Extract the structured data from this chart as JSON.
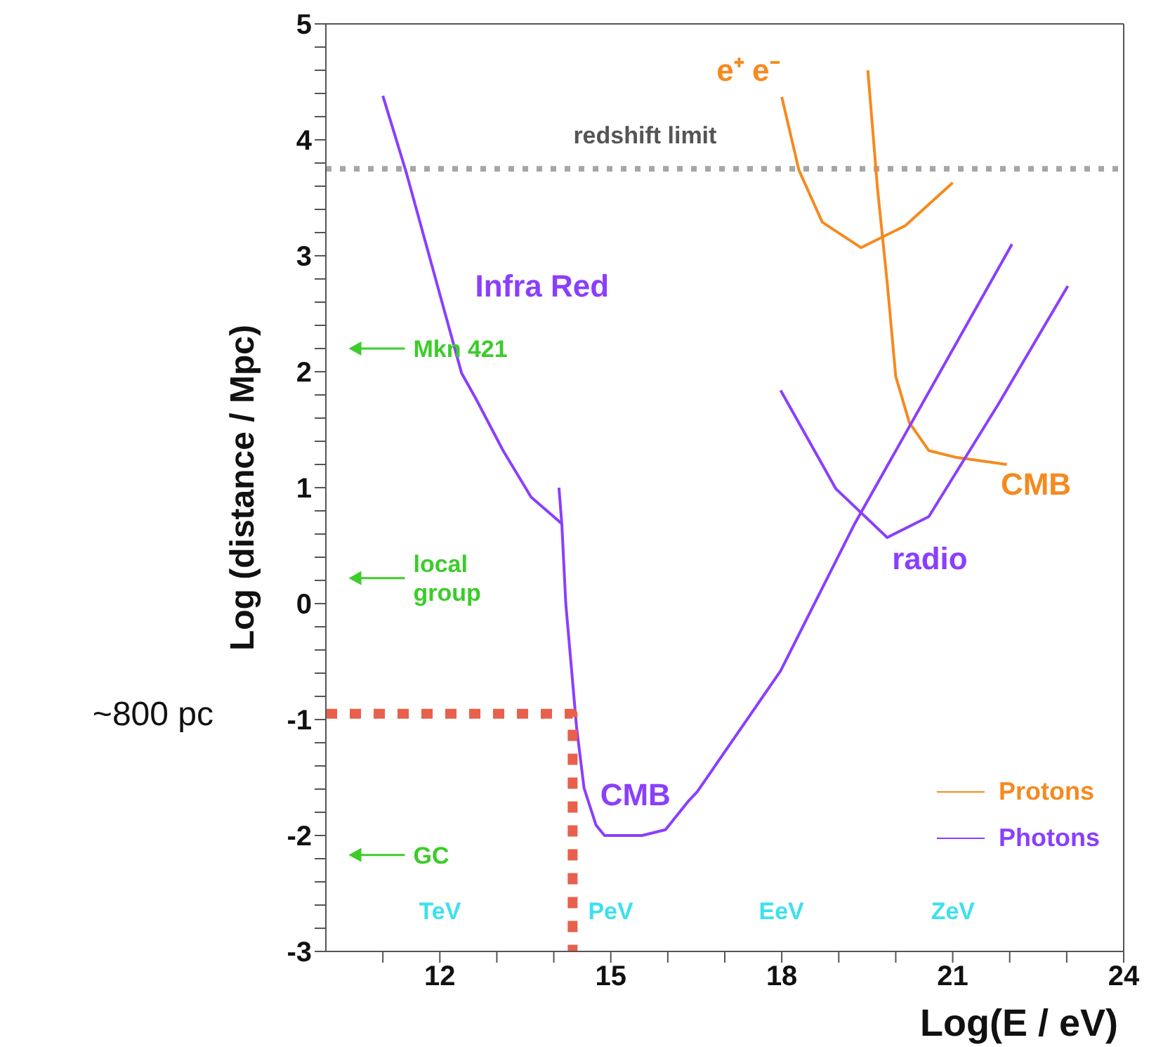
{
  "chart_data": {
    "type": "line",
    "xlabel": "Log(E / eV)",
    "ylabel": "Log (distance / Mpc)",
    "xlim": [
      10,
      24
    ],
    "xticks": [
      {
        "value": 11,
        "label": null
      },
      12,
      {
        "value": 13,
        "label": null
      },
      {
        "value": 14,
        "label": null
      },
      15,
      {
        "value": 16,
        "label": null
      },
      {
        "value": 17,
        "label": null
      },
      18,
      {
        "value": 19,
        "label": null
      },
      {
        "value": 20,
        "label": null
      },
      21,
      {
        "value": 22,
        "label": null
      },
      {
        "value": 23,
        "label": null
      },
      24
    ],
    "ylim": [
      -3,
      5
    ],
    "yticks": [
      -3,
      {
        "value": -2.8,
        "label": null
      },
      {
        "value": -2.6,
        "label": null
      },
      {
        "value": -2.4,
        "label": null
      },
      {
        "value": -2.2,
        "label": null
      },
      -2,
      {
        "value": -1.8,
        "label": null
      },
      {
        "value": -1.6,
        "label": null
      },
      {
        "value": -1.4,
        "label": null
      },
      {
        "value": -1.2,
        "label": null
      },
      -1,
      {
        "value": -0.8,
        "label": null
      },
      {
        "value": -0.6,
        "label": null
      },
      {
        "value": -0.4,
        "label": null
      },
      {
        "value": -0.2,
        "label": null
      },
      0,
      {
        "value": 0.2,
        "label": null
      },
      {
        "value": 0.4,
        "label": null
      },
      {
        "value": 0.6,
        "label": null
      },
      {
        "value": 0.8,
        "label": null
      },
      1,
      {
        "value": 1.2,
        "label": null
      },
      {
        "value": 1.4,
        "label": null
      },
      {
        "value": 1.6,
        "label": null
      },
      {
        "value": 1.8,
        "label": null
      },
      2,
      {
        "value": 2.2,
        "label": null
      },
      {
        "value": 2.4,
        "label": null
      },
      {
        "value": 2.6,
        "label": null
      },
      {
        "value": 2.8,
        "label": null
      },
      3,
      {
        "value": 3.2,
        "label": null
      },
      {
        "value": 3.4,
        "label": null
      },
      {
        "value": 3.6,
        "label": null
      },
      {
        "value": 3.8,
        "label": null
      },
      4,
      {
        "value": 4.2,
        "label": null
      },
      {
        "value": 4.4,
        "label": null
      },
      {
        "value": 4.6,
        "label": null
      },
      {
        "value": 4.8,
        "label": null
      },
      5
    ],
    "marker": "none",
    "legend": "bottom right",
    "series": [
      {
        "name": "Protons",
        "color": "#f58a1f",
        "x": [
          18.0,
          18.3,
          18.71,
          19.39,
          20.17,
          21.0
        ],
        "values": [
          4.37,
          3.74,
          3.29,
          3.07,
          3.26,
          3.63
        ]
      },
      {
        "color": "#f58a1f",
        "x": [
          19.51,
          19.68,
          19.85,
          20.0,
          20.24,
          20.58,
          21.07,
          21.95
        ],
        "values": [
          4.6,
          3.58,
          2.77,
          1.96,
          1.56,
          1.32,
          1.26,
          1.2
        ]
      },
      {
        "name": "Photons",
        "color": "#8a3ffc",
        "x": [
          11.0,
          11.41,
          12.38,
          12.63,
          13.11,
          13.6,
          14.09,
          14.14
        ],
        "values": [
          4.38,
          3.72,
          1.99,
          1.77,
          1.32,
          0.92,
          0.71,
          0.69
        ]
      },
      {
        "color": "#8a3ffc",
        "x": [
          14.09,
          14.14,
          14.21,
          14.4,
          14.53,
          14.74,
          14.89,
          15.55,
          15.96,
          16.35,
          16.52,
          17.98,
          19.27,
          22.04
        ],
        "values": [
          1.0,
          0.69,
          0.0,
          -1.07,
          -1.59,
          -1.91,
          -2.0,
          -2.0,
          -1.95,
          -1.71,
          -1.62,
          -0.58,
          0.68,
          3.1
        ]
      },
      {
        "color": "#8a3ffc",
        "x": [
          17.98,
          18.95,
          19.85,
          20.58,
          21.8,
          23.02
        ],
        "values": [
          1.84,
          0.99,
          0.57,
          0.75,
          1.72,
          2.74
        ]
      },
      {
        "color": "#e8604c",
        "line_style": "dashed",
        "x": [
          10,
          14.33,
          14.33
        ],
        "values": [
          -0.95,
          -0.95,
          -3
        ]
      }
    ],
    "ref_lines": [
      {
        "axis": "y",
        "value": 3.75,
        "label": "redshift limit",
        "color": "#a6a6a6",
        "line_style": "dotted"
      }
    ],
    "annotations": [
      "Mkn 421",
      "local group",
      "GC",
      "Infra Red",
      "CMB",
      "radio",
      "e⁺ e⁻",
      "CMB",
      "TeV",
      "PeV",
      "EeV",
      "ZeV",
      "~800 pc"
    ]
  }
}
